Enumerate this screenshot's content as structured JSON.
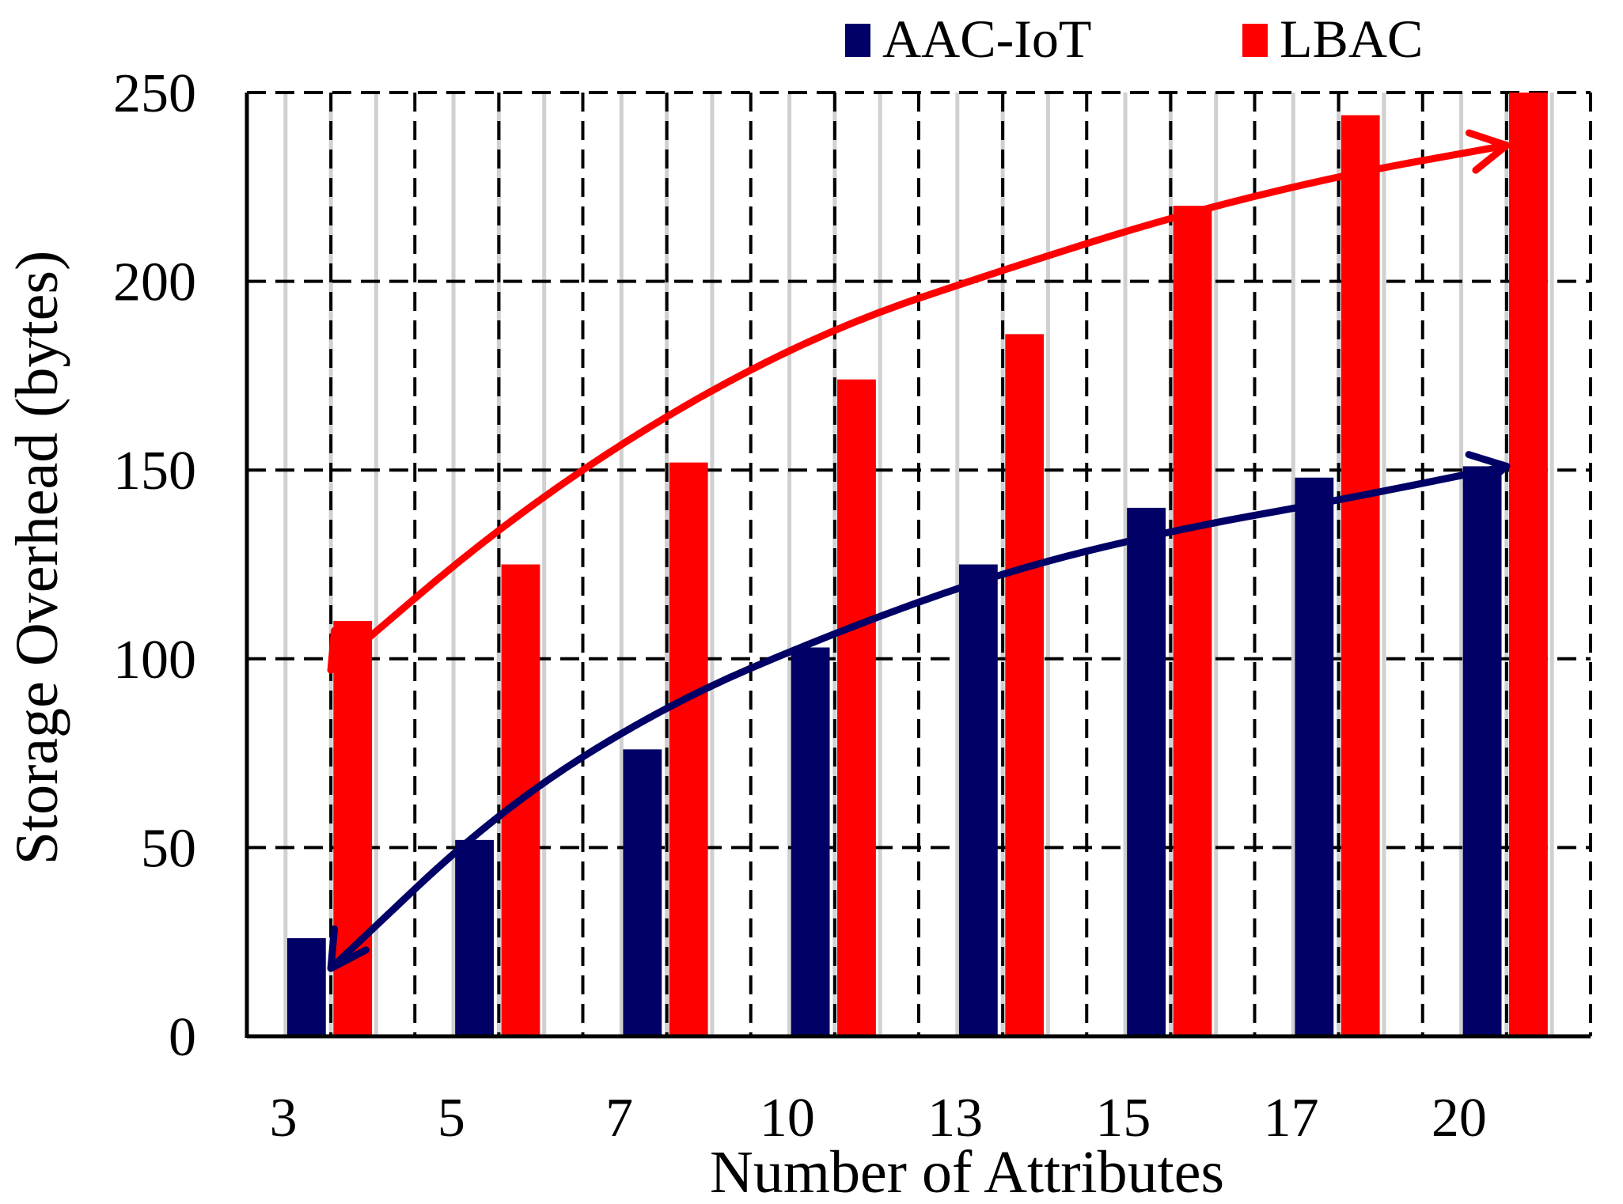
{
  "chart_data": {
    "type": "bar",
    "xlabel": "Number of Attributes",
    "ylabel": "Storage Overhead (bytes)",
    "categories": [
      "3",
      "5",
      "7",
      "10",
      "13",
      "15",
      "17",
      "20"
    ],
    "ylim": [
      0,
      250
    ],
    "yticks": [
      "0",
      "50",
      "100",
      "150",
      "200",
      "250"
    ],
    "grid": true,
    "legend_position": "top-right",
    "series": [
      {
        "name": "AAC-IoT",
        "color": "#000066",
        "values": [
          26,
          52,
          76,
          103,
          125,
          140,
          148,
          151
        ]
      },
      {
        "name": "LBAC",
        "color": "#ff0000",
        "values": [
          110,
          125,
          152,
          174,
          186,
          220,
          244,
          250
        ]
      }
    ],
    "trend_arrows": [
      {
        "series": "LBAC",
        "color": "#ff0000",
        "x": [
          3,
          5,
          7,
          10,
          13,
          15,
          17,
          20
        ],
        "y": [
          97,
          135,
          165,
          188,
          203,
          217,
          228,
          236
        ]
      },
      {
        "series": "AAC-IoT",
        "color": "#000066",
        "x": [
          3,
          5,
          7,
          10,
          13,
          15,
          17,
          20
        ],
        "y": [
          18,
          60,
          88,
          107,
          123,
          134,
          142,
          151
        ]
      }
    ]
  }
}
